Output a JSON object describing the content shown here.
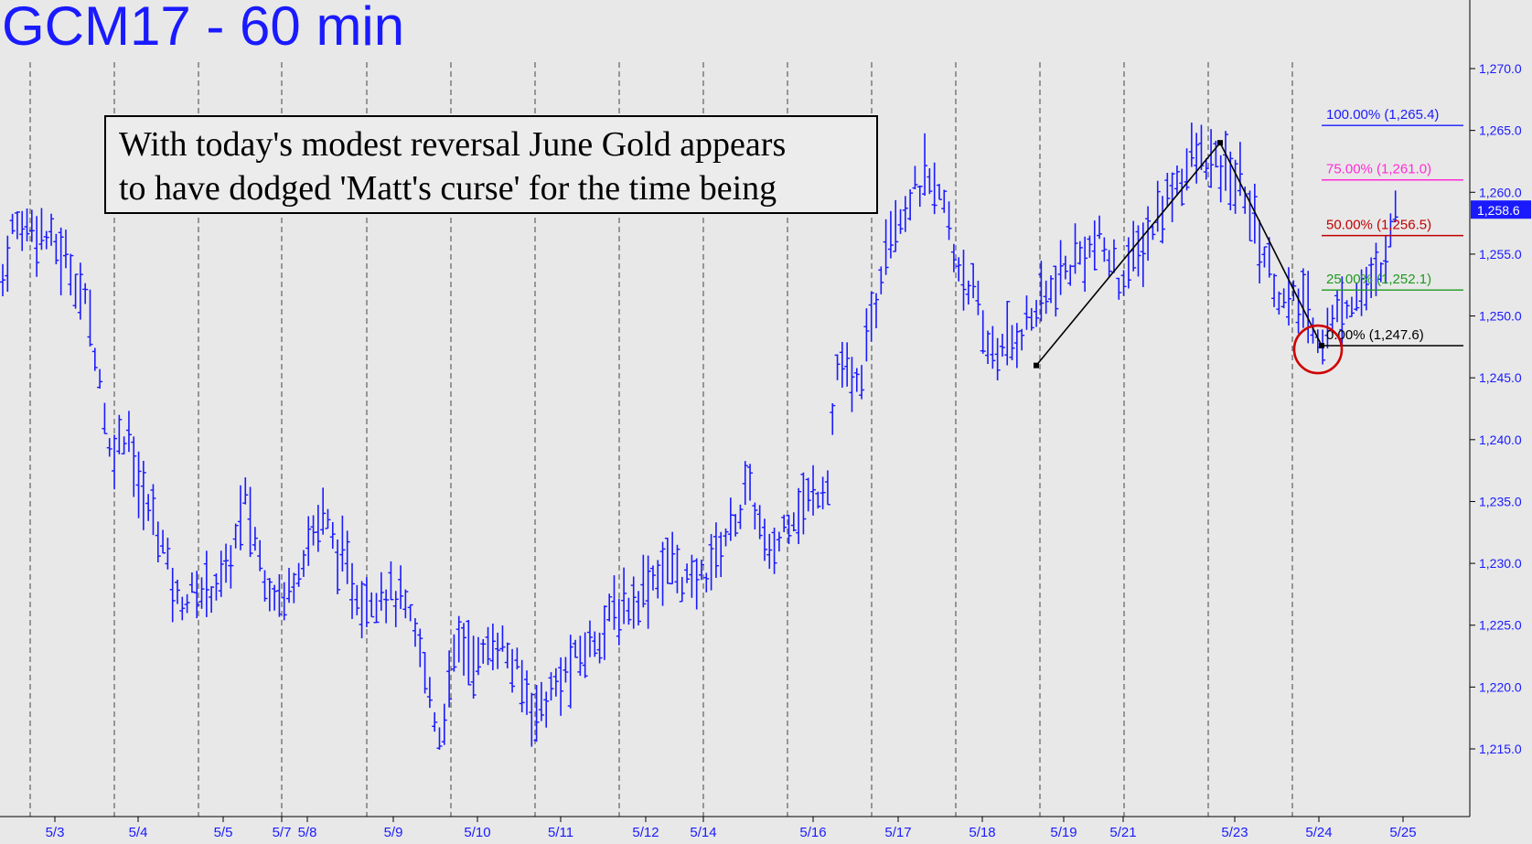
{
  "title": "GCM17 - 60 min",
  "annotation": {
    "line1": "With today's modest reversal June Gold appears",
    "line2": "to have dodged 'Matt's curse' for the time being"
  },
  "colors": {
    "background": "#e8e8e8",
    "bars": "#1a1aff",
    "title": "#1a1aff",
    "fib_100": "#1a1aff",
    "fib_75": "#ff2bd6",
    "fib_50": "#c00000",
    "fib_25": "#1e9a1e",
    "fib_0": "#000000",
    "circle": "#d00000"
  },
  "chart_data": {
    "type": "ohlc",
    "symbol": "GCM17",
    "interval": "60 min",
    "ylim": [
      1211,
      1273
    ],
    "yticks": [
      "1,215.0",
      "1,220.0",
      "1,225.0",
      "1,230.0",
      "1,235.0",
      "1,240.0",
      "1,245.0",
      "1,250.0",
      "1,255.0",
      "1,260.0",
      "1,265.0",
      "1,270.0"
    ],
    "ytick_values": [
      1215,
      1220,
      1225,
      1230,
      1235,
      1240,
      1245,
      1250,
      1255,
      1260,
      1265,
      1270
    ],
    "date_labels": [
      "5/3",
      "5/4",
      "5/5",
      "5/7",
      "5/8",
      "5/9",
      "5/10",
      "5/11",
      "5/12",
      "5/14",
      "5/16",
      "5/17",
      "5/18",
      "5/19",
      "5/21",
      "5/23",
      "5/24",
      "5/25"
    ],
    "date_label_index": [
      2,
      6,
      10,
      14,
      15,
      19,
      23,
      27,
      31,
      34,
      39,
      43,
      47,
      51,
      55,
      59,
      63,
      67
    ],
    "session_count": 70,
    "session_dividers": [
      1,
      5,
      9,
      13,
      17,
      21,
      25,
      29,
      33,
      37,
      41,
      45,
      49,
      53,
      57,
      61
    ],
    "anchors": [
      [
        0,
        1253
      ],
      [
        1,
        1257
      ],
      [
        3,
        1257.5
      ],
      [
        5,
        1256
      ],
      [
        7,
        1254
      ],
      [
        9,
        1250
      ],
      [
        10,
        1245
      ],
      [
        11,
        1239
      ],
      [
        13,
        1241
      ],
      [
        14,
        1236
      ],
      [
        16,
        1233
      ],
      [
        18,
        1227
      ],
      [
        21,
        1228
      ],
      [
        23,
        1229
      ],
      [
        25,
        1235
      ],
      [
        27,
        1229
      ],
      [
        29,
        1227
      ],
      [
        31,
        1231
      ],
      [
        33,
        1234
      ],
      [
        35,
        1230
      ],
      [
        37,
        1227
      ],
      [
        39,
        1228
      ],
      [
        41,
        1227
      ],
      [
        43,
        1223
      ],
      [
        45,
        1216
      ],
      [
        47,
        1224
      ],
      [
        49,
        1222
      ],
      [
        51,
        1224
      ],
      [
        53,
        1221
      ],
      [
        55,
        1218
      ],
      [
        57,
        1220
      ],
      [
        59,
        1222
      ],
      [
        61,
        1224
      ],
      [
        63,
        1226
      ],
      [
        65,
        1227
      ],
      [
        67,
        1229
      ],
      [
        69,
        1230
      ],
      [
        71,
        1228
      ],
      [
        73,
        1230
      ],
      [
        75,
        1233
      ],
      [
        77,
        1236
      ],
      [
        79,
        1230
      ],
      [
        81,
        1234
      ],
      [
        83,
        1235
      ],
      [
        85,
        1237
      ],
      [
        86,
        1246
      ],
      [
        88,
        1244
      ],
      [
        90,
        1251
      ],
      [
        91,
        1257
      ],
      [
        93,
        1259
      ],
      [
        95,
        1261
      ],
      [
        97,
        1259
      ],
      [
        98,
        1255
      ],
      [
        100,
        1252
      ],
      [
        101,
        1248
      ],
      [
        103,
        1247
      ],
      [
        105,
        1249
      ],
      [
        107,
        1251
      ],
      [
        109,
        1253
      ],
      [
        111,
        1255
      ],
      [
        113,
        1256
      ],
      [
        115,
        1253
      ],
      [
        117,
        1255
      ],
      [
        119,
        1258
      ],
      [
        121,
        1261
      ],
      [
        123,
        1263
      ],
      [
        125,
        1262
      ],
      [
        127,
        1261
      ],
      [
        128,
        1260
      ],
      [
        130,
        1255
      ],
      [
        132,
        1251
      ],
      [
        134,
        1251
      ],
      [
        136,
        1248
      ],
      [
        138,
        1251
      ],
      [
        140,
        1252
      ],
      [
        142,
        1253
      ],
      [
        143,
        1258
      ]
    ],
    "bar_count": 144,
    "swing_path": [
      {
        "x": 57.5,
        "y": 1246
      },
      {
        "x": 69.5,
        "y": 1264
      },
      {
        "x": 74.3,
        "y": 1247.6
      }
    ],
    "fibonacci": [
      {
        "label": "100.00% (1,265.4)",
        "value": 1265.4,
        "color_key": "fib_100"
      },
      {
        "label": "75.00% (1,261.0)",
        "value": 1261.0,
        "color_key": "fib_75"
      },
      {
        "label": "50.00% (1,256.5)",
        "value": 1256.5,
        "color_key": "fib_50"
      },
      {
        "label": "25.00% (1,252.1)",
        "value": 1252.1,
        "color_key": "fib_25"
      },
      {
        "label": "0.00% (1,247.6)",
        "value": 1247.6,
        "color_key": "fib_0"
      }
    ],
    "fib_start_x": 74.3,
    "last_price": {
      "label": "1,258.6",
      "value": 1258.6
    },
    "circle_marker": {
      "x": 74.3,
      "y": 1247.3
    }
  }
}
